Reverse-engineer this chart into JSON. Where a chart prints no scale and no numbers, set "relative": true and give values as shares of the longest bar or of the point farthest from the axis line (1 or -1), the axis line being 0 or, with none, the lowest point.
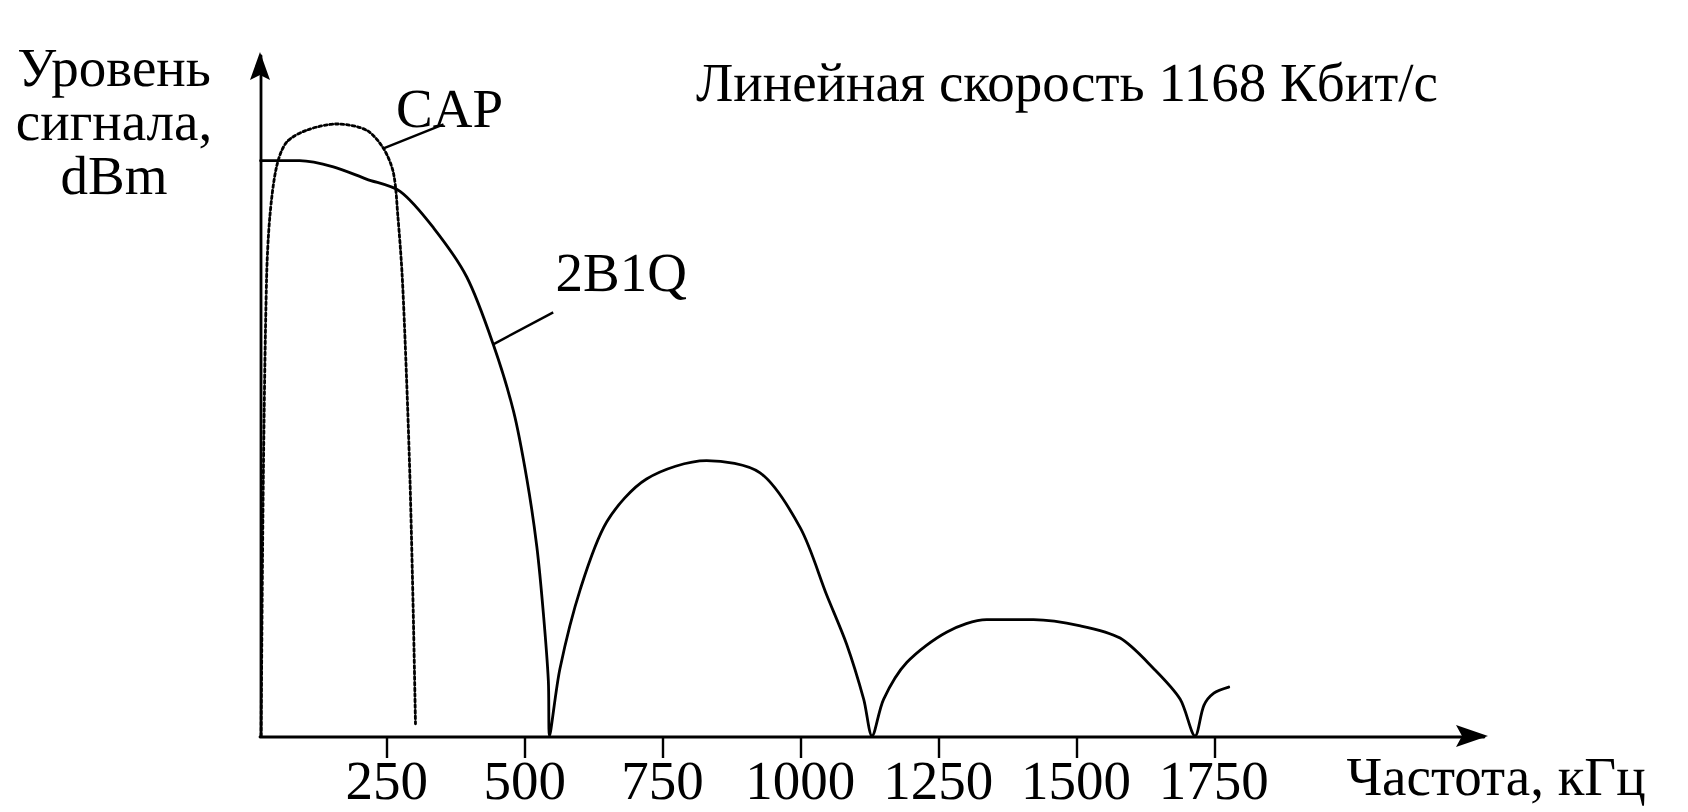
{
  "chart_data": {
    "type": "line",
    "title": "Линейная скорость 1168 Кбит/с",
    "xlabel": "Частота, кГц",
    "ylabel": "Уровень сигнала, dBm",
    "relative": true,
    "xlim": [
      20,
      2240
    ],
    "xticks": [
      250,
      500,
      750,
      1000,
      1250,
      1500,
      1750
    ],
    "marker": "none",
    "grid": false,
    "legend": false,
    "series": [
      {
        "name": "CAP",
        "color": "#000000",
        "line_style": "dotted",
        "x": [
          22,
          26,
          32,
          38,
          50,
          68,
          105,
          159,
          213,
          244,
          262,
          270,
          278,
          286,
          292,
          298,
          302
        ],
        "values": [
          0,
          0.42,
          0.75,
          0.85,
          0.93,
          0.97,
          0.99,
          1,
          0.99,
          0.96,
          0.92,
          0.85,
          0.75,
          0.58,
          0.42,
          0.2,
          0.02
        ]
      },
      {
        "name": "2B1Q",
        "color": "#000000",
        "line_style": "solid",
        "x": [
          21,
          92,
          153,
          213,
          274,
          335,
          395,
          443,
          480,
          504,
          522,
          534,
          543,
          545,
          564,
          601,
          649,
          721,
          830,
          927,
          1000,
          1048,
          1084,
          1115,
          1130,
          1151,
          1193,
          1266,
          1338,
          1423,
          1508,
          1580,
          1641,
          1689,
          1716,
          1732,
          1750,
          1777
        ],
        "values": [
          0.94,
          0.94,
          0.93,
          0.91,
          0.89,
          0.83,
          0.75,
          0.64,
          0.53,
          0.42,
          0.31,
          0.2,
          0.09,
          0,
          0.11,
          0.24,
          0.35,
          0.42,
          0.45,
          0.43,
          0.34,
          0.23,
          0.15,
          0.06,
          0,
          0.06,
          0.12,
          0.17,
          0.19,
          0.19,
          0.18,
          0.16,
          0.11,
          0.06,
          0,
          0.05,
          0.07,
          0.08
        ]
      }
    ]
  }
}
